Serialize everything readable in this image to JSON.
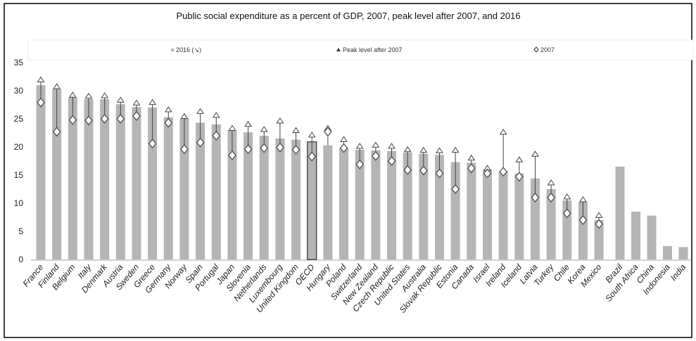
{
  "chart_data": {
    "type": "bar",
    "title": "Public social expenditure as a percent of GDP, 2007, peak level after 2007, and 2016",
    "xlabel": "",
    "ylabel": "",
    "ylim": [
      0,
      35
    ],
    "yticks": [
      0,
      5,
      10,
      15,
      20,
      25,
      30,
      35
    ],
    "legend_position": "top",
    "legend": {
      "bars": "2016 (↘)",
      "peak": "Peak level after 2007",
      "y2007": "2007"
    },
    "colors": {
      "bar": "#b5b5b5",
      "oecd_bar_border": "#333333",
      "marker": "#444444",
      "frame": "#000000"
    },
    "categories": [
      "France",
      "Finland",
      "Belgium",
      "Italy",
      "Denmark",
      "Austria",
      "Sweden",
      "Greece",
      "Germany",
      "Norway",
      "Spain",
      "Portugal",
      "Japan",
      "Slovenia",
      "Netherlands",
      "Luxembourg",
      "United Kingdom",
      "OECD",
      "Hungary",
      "Poland",
      "Switzerland",
      "New Zealand",
      "Czech Republic",
      "United States",
      "Australia",
      "Slovak Republic",
      "Estonia",
      "Canada",
      "Israel",
      "Ireland",
      "Iceland",
      "Latvia",
      "Turkey",
      "Chile",
      "Korea",
      "Mexico"
    ],
    "series": [
      {
        "name": "2016 (↘)",
        "values": [
          31.0,
          30.3,
          28.8,
          28.5,
          28.5,
          27.6,
          27.1,
          27.0,
          25.3,
          25.0,
          24.3,
          24.0,
          23.0,
          22.6,
          22.0,
          21.5,
          21.3,
          20.9,
          20.3,
          19.8,
          19.5,
          19.4,
          19.3,
          19.0,
          18.8,
          18.6,
          17.3,
          17.2,
          16.0,
          15.7,
          15.3,
          14.4,
          12.5,
          10.5,
          10.2,
          7.0
        ]
      },
      {
        "name": "Peak level after 2007",
        "values": [
          31.8,
          30.6,
          29.1,
          28.9,
          29.0,
          28.2,
          27.7,
          27.8,
          26.5,
          25.3,
          26.2,
          25.5,
          23.2,
          23.9,
          23.0,
          24.5,
          22.8,
          22.0,
          23.2,
          21.2,
          20.0,
          20.2,
          20.0,
          19.4,
          19.3,
          19.2,
          19.3,
          17.9,
          16.1,
          22.5,
          17.6,
          18.6,
          13.5,
          11.0,
          10.5,
          7.7
        ]
      },
      {
        "name": "2007",
        "values": [
          27.9,
          22.7,
          24.8,
          24.7,
          25.0,
          25.0,
          25.5,
          20.6,
          24.3,
          19.6,
          20.8,
          22.0,
          18.5,
          19.6,
          19.8,
          19.9,
          19.5,
          18.3,
          22.7,
          19.8,
          16.9,
          18.4,
          17.5,
          15.9,
          15.8,
          15.3,
          12.5,
          16.2,
          15.3,
          15.6,
          14.7,
          11.0,
          11.0,
          8.2,
          7.0,
          6.3
        ]
      }
    ],
    "nonmember_categories": [
      "Brazil",
      "South Africa",
      "China",
      "Indonesia",
      "India"
    ],
    "nonmember_values": [
      16.5,
      8.5,
      7.8,
      2.4,
      2.2
    ]
  }
}
